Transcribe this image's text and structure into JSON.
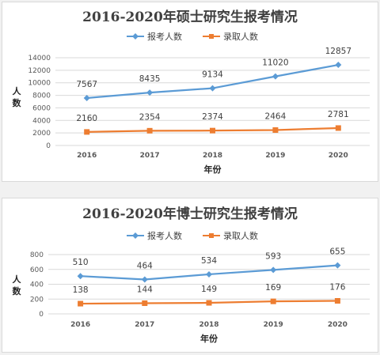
{
  "chart_data": [
    {
      "type": "line",
      "title": "2016-2020年硕士研究生报考情况",
      "xlabel": "年份",
      "ylabel": "人数",
      "categories": [
        "2016",
        "2017",
        "2018",
        "2019",
        "2020"
      ],
      "ylim": [
        0,
        14000
      ],
      "yticks": [
        "0",
        "2000",
        "4000",
        "6000",
        "8000",
        "10000",
        "12000",
        "14000"
      ],
      "grid": true,
      "legend": "top",
      "series": [
        {
          "name": "报考人数",
          "color": "#5b9bd5",
          "marker": "diamond",
          "values": [
            7567,
            8435,
            9134,
            11020,
            12857
          ]
        },
        {
          "name": "录取人数",
          "color": "#ed7d31",
          "marker": "square",
          "values": [
            2160,
            2354,
            2374,
            2464,
            2781
          ]
        }
      ]
    },
    {
      "type": "line",
      "title": "2016-2020年博士研究生报考情况",
      "xlabel": "年份",
      "ylabel": "人数",
      "categories": [
        "2016",
        "2017",
        "2018",
        "2019",
        "2020"
      ],
      "ylim": [
        0,
        800
      ],
      "yticks": [
        "0",
        "200",
        "400",
        "600",
        "800"
      ],
      "grid": true,
      "legend": "top",
      "series": [
        {
          "name": "报考人数",
          "color": "#5b9bd5",
          "marker": "diamond",
          "values": [
            510,
            464,
            534,
            593,
            655
          ]
        },
        {
          "name": "录取人数",
          "color": "#ed7d31",
          "marker": "square",
          "values": [
            138,
            144,
            149,
            169,
            176
          ]
        }
      ]
    }
  ]
}
